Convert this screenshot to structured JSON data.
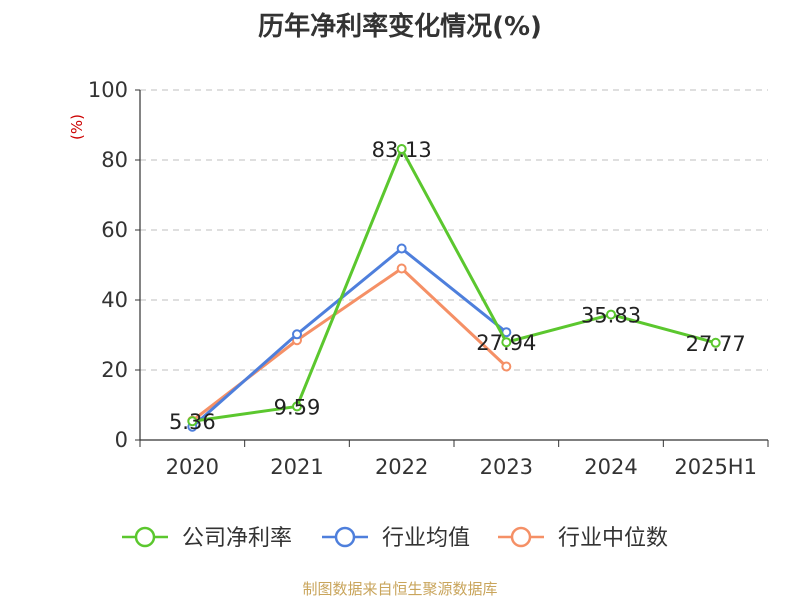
{
  "chart_data": {
    "type": "line",
    "title": "历年净利率变化情况(%)",
    "ylabel": "(%)",
    "xlabel": "",
    "categories": [
      "2020",
      "2021",
      "2022",
      "2023",
      "2024",
      "2025H1"
    ],
    "ylim": [
      0,
      100
    ],
    "yticks": [
      0,
      20,
      40,
      60,
      80,
      100
    ],
    "grid": true,
    "legend_position": "bottom",
    "series": [
      {
        "name": "公司净利率",
        "color": "#5bc72e",
        "values": [
          5.36,
          9.59,
          83.13,
          27.94,
          35.83,
          27.77
        ],
        "labels": [
          "5.36",
          "9.59",
          "83.13",
          "27.94",
          "35.83",
          "27.77"
        ]
      },
      {
        "name": "行业均值",
        "color": "#4e7fdc",
        "values": [
          3.8,
          30.2,
          54.7,
          30.8,
          null,
          null
        ]
      },
      {
        "name": "行业中位数",
        "color": "#f59066",
        "values": [
          5.5,
          28.5,
          49.0,
          21.0,
          null,
          null
        ]
      }
    ]
  },
  "source": "制图数据来自恒生聚源数据库"
}
